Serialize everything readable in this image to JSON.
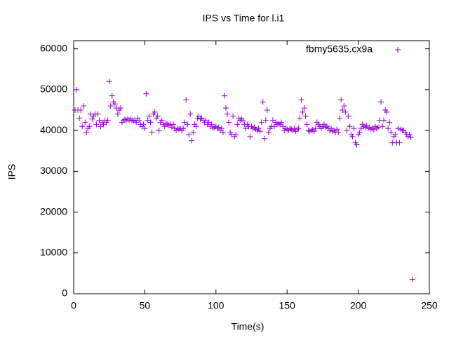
{
  "chart_data": {
    "type": "scatter",
    "title": "IPS vs Time for l.i1",
    "xlabel": "Time(s)",
    "ylabel": "IPS",
    "xlim": [
      0,
      250
    ],
    "xticks": [
      0,
      50,
      100,
      150,
      200,
      250
    ],
    "ylim": [
      0,
      62000
    ],
    "yticks": [
      0,
      10000,
      20000,
      30000,
      40000,
      50000,
      60000
    ],
    "legend": "top-right",
    "series": [
      {
        "name": "fbmy5635.cx9a",
        "color": "#9400d3",
        "x": [
          1,
          2,
          3,
          4,
          5,
          6,
          7,
          8,
          9,
          10,
          11,
          12,
          13,
          14,
          15,
          16,
          17,
          18,
          19,
          20,
          21,
          22,
          23,
          24,
          25,
          26,
          27,
          28,
          29,
          30,
          31,
          32,
          33,
          34,
          35,
          36,
          37,
          38,
          39,
          40,
          41,
          42,
          43,
          44,
          45,
          46,
          47,
          48,
          49,
          50,
          51,
          52,
          53,
          54,
          55,
          56,
          57,
          58,
          59,
          60,
          61,
          62,
          63,
          64,
          65,
          66,
          67,
          68,
          69,
          70,
          71,
          72,
          73,
          74,
          75,
          76,
          77,
          78,
          79,
          80,
          81,
          82,
          83,
          84,
          85,
          86,
          87,
          88,
          89,
          90,
          91,
          92,
          93,
          94,
          95,
          96,
          97,
          98,
          99,
          100,
          101,
          102,
          103,
          104,
          105,
          106,
          107,
          108,
          109,
          110,
          111,
          112,
          113,
          114,
          115,
          116,
          117,
          118,
          119,
          120,
          121,
          122,
          123,
          124,
          125,
          126,
          127,
          128,
          129,
          130,
          131,
          132,
          133,
          134,
          135,
          136,
          137,
          138,
          139,
          140,
          141,
          142,
          143,
          144,
          145,
          146,
          147,
          148,
          149,
          150,
          151,
          152,
          153,
          154,
          155,
          156,
          157,
          158,
          159,
          160,
          161,
          162,
          163,
          164,
          165,
          166,
          167,
          168,
          169,
          170,
          171,
          172,
          173,
          174,
          175,
          176,
          177,
          178,
          179,
          180,
          181,
          182,
          183,
          184,
          185,
          186,
          187,
          188,
          189,
          190,
          191,
          192,
          193,
          194,
          195,
          196,
          197,
          198,
          199,
          200,
          201,
          202,
          203,
          204,
          205,
          206,
          207,
          208,
          209,
          210,
          211,
          212,
          213,
          214,
          215,
          216,
          217,
          218,
          219,
          220,
          221,
          222,
          223,
          224,
          225,
          226,
          227,
          228,
          229,
          230,
          231,
          232,
          233,
          234,
          235,
          236,
          237,
          238
        ],
        "values": [
          45000,
          50000,
          45000,
          43000,
          45000,
          41000,
          46000,
          42000,
          39500,
          40500,
          41000,
          44000,
          42800,
          43500,
          44000,
          41500,
          44000,
          42500,
          41000,
          42000,
          41500,
          42500,
          42000,
          42500,
          52000,
          46000,
          48500,
          47000,
          46500,
          45500,
          44000,
          45000,
          45500,
          42000,
          42500,
          42700,
          42500,
          42800,
          42500,
          42800,
          42500,
          42300,
          42500,
          42000,
          43000,
          42500,
          41500,
          41000,
          41500,
          40500,
          49000,
          42500,
          43500,
          42000,
          39500,
          44000,
          44500,
          43000,
          43500,
          40000,
          42000,
          42500,
          41500,
          41000,
          41800,
          41500,
          41200,
          41500,
          40800,
          41500,
          40500,
          40000,
          40500,
          40300,
          40500,
          40000,
          40500,
          42000,
          47500,
          41500,
          39000,
          44000,
          37500,
          39500,
          41500,
          41000,
          43000,
          43500,
          42800,
          43000,
          42500,
          42000,
          42500,
          41500,
          42000,
          41000,
          41500,
          40500,
          40800,
          41000,
          40500,
          40800,
          40000,
          40500,
          39500,
          48500,
          45500,
          44000,
          42000,
          39500,
          39000,
          43500,
          38500,
          39000,
          41500,
          43000,
          42500,
          42800,
          42500,
          41500,
          40500,
          41500,
          41000,
          38500,
          41000,
          40500,
          40800,
          40300,
          40000,
          40500,
          39800,
          42000,
          47000,
          38000,
          42500,
          45000,
          39500,
          40500,
          41000,
          42500,
          41000,
          42000,
          41500,
          41700,
          41500,
          42000,
          41000,
          40000,
          40500,
          40300,
          40000,
          40500,
          40300,
          40000,
          40500,
          39800,
          40200,
          40500,
          43000,
          47500,
          44500,
          45500,
          43500,
          41500,
          40000,
          39800,
          40000,
          40200,
          39800,
          40500,
          42000,
          41500,
          41000,
          40500,
          41000,
          41500,
          40800,
          41000,
          40500,
          40000,
          40500,
          39800,
          40000,
          39500,
          40300,
          39500,
          43000,
          47500,
          45000,
          46000,
          44500,
          40000,
          43500,
          41000,
          39000,
          38500,
          40500,
          37000,
          36500,
          39000,
          39500,
          40500,
          41500,
          41000,
          40800,
          41200,
          40500,
          40800,
          40300,
          40500,
          40200,
          41000,
          40500,
          40800,
          42500,
          47000,
          41000,
          42500,
          45000,
          44500,
          40500,
          42000,
          39500,
          37000,
          38500,
          39000,
          37000,
          40500,
          37000,
          40300,
          40000,
          40000,
          39500,
          39000,
          38500,
          39000,
          38300,
          3500
        ]
      }
    ]
  }
}
